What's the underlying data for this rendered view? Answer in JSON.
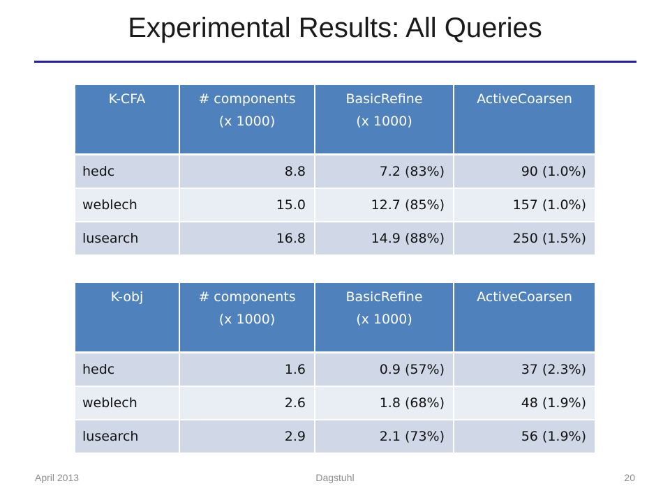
{
  "title": "Experimental Results: All Queries",
  "tables": [
    {
      "headers": [
        {
          "line1": "K-CFA",
          "line2": ""
        },
        {
          "line1": "# components",
          "line2": "(x 1000)"
        },
        {
          "line1": "BasicRefine",
          "line2": "(x 1000)"
        },
        {
          "line1": "ActiveCoarsen",
          "line2": ""
        }
      ],
      "rows": [
        [
          "hedc",
          "8.8",
          "7.2 (83%)",
          "90 (1.0%)"
        ],
        [
          "weblech",
          "15.0",
          "12.7 (85%)",
          "157 (1.0%)"
        ],
        [
          "lusearch",
          "16.8",
          "14.9 (88%)",
          "250 (1.5%)"
        ]
      ]
    },
    {
      "headers": [
        {
          "line1": "K-obj",
          "line2": ""
        },
        {
          "line1": "# components",
          "line2": "(x 1000)"
        },
        {
          "line1": "BasicRefine",
          "line2": "(x 1000)"
        },
        {
          "line1": "ActiveCoarsen",
          "line2": ""
        }
      ],
      "rows": [
        [
          "hedc",
          "1.6",
          "0.9 (57%)",
          "37 (2.3%)"
        ],
        [
          "weblech",
          "2.6",
          "1.8 (68%)",
          "48 (1.9%)"
        ],
        [
          "lusearch",
          "2.9",
          "2.1 (73%)",
          "56 (1.9%)"
        ]
      ]
    }
  ],
  "footer": {
    "date": "April 2013",
    "venue": "Dagstuhl",
    "page": "20"
  },
  "colors": {
    "header_bg": "#4f81bd",
    "row_odd": "#d0d8e8",
    "row_even": "#e9edf4",
    "title_rule": "#1f1fb4"
  }
}
